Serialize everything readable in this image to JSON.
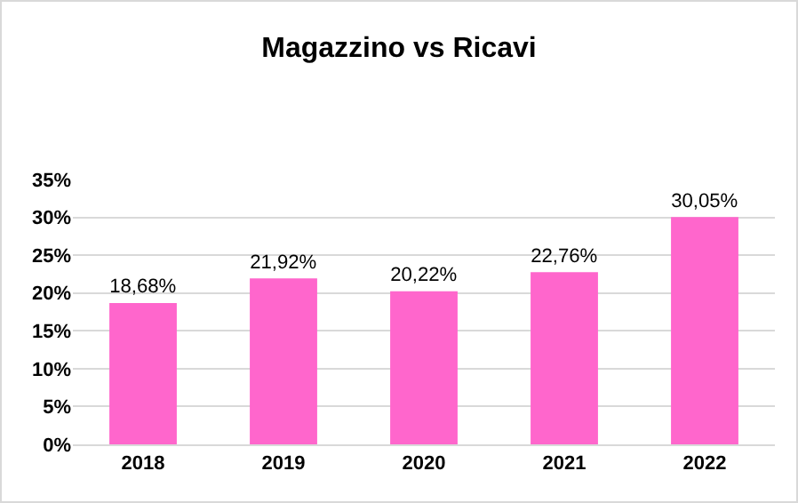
{
  "chart_data": {
    "type": "bar",
    "title": "Magazzino vs Ricavi",
    "categories": [
      "2018",
      "2019",
      "2020",
      "2021",
      "2022"
    ],
    "values": [
      18.68,
      21.92,
      20.22,
      22.76,
      30.05
    ],
    "value_labels": [
      "18,68%",
      "21,92%",
      "20,22%",
      "22,76%",
      "30,05%"
    ],
    "color": "#ff66cc",
    "ylim": [
      0,
      35
    ],
    "yticks": [
      {
        "value": 0,
        "label": "0%"
      },
      {
        "value": 5,
        "label": "5%"
      },
      {
        "value": 10,
        "label": "10%"
      },
      {
        "value": 15,
        "label": "15%"
      },
      {
        "value": 20,
        "label": "20%"
      },
      {
        "value": 25,
        "label": "25%"
      },
      {
        "value": 30,
        "label": "30%"
      },
      {
        "value": 35,
        "label": "35%"
      }
    ],
    "grid": true
  }
}
